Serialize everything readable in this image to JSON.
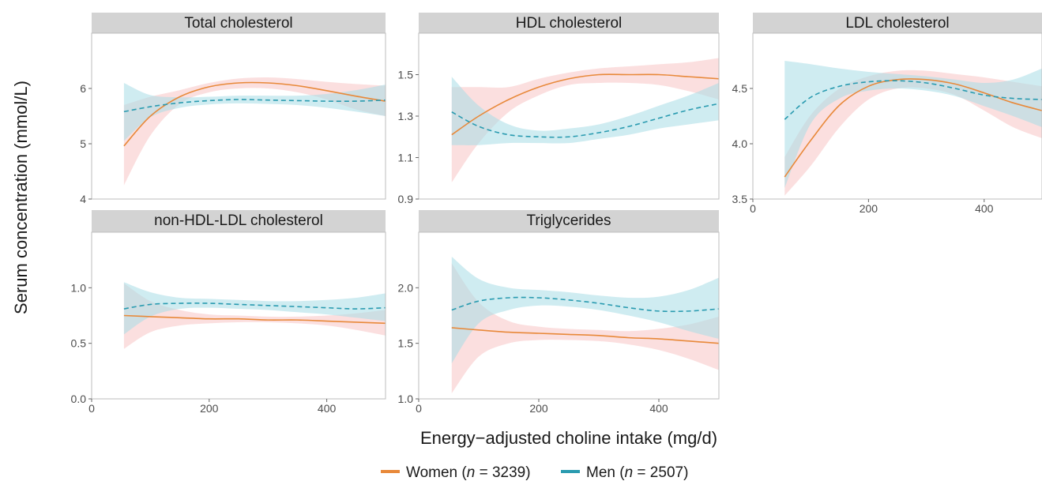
{
  "figure": {
    "ylabel": "Serum concentration (mmol/L)",
    "xlabel": "Energy−adjusted choline intake (mg/d)",
    "legend": [
      {
        "key": "women",
        "label": "Women (",
        "n_symbol": "n",
        "n_text": " = 3239)"
      },
      {
        "key": "men",
        "label": "Men (",
        "n_symbol": "n",
        "n_text": " = 2507)"
      }
    ],
    "colors": {
      "women_line": "#E8893A",
      "women_band": "#F8C5C5",
      "men_line": "#2A9BB0",
      "men_band": "#A8DCE6",
      "strip": "#D3D3D3"
    }
  },
  "chart_data": [
    {
      "type": "line",
      "title": "Total cholesterol",
      "xlim": [
        0,
        500
      ],
      "ylim": [
        4,
        7
      ],
      "y_ticks": [
        4,
        5,
        6
      ],
      "x_ticks": [],
      "series": [
        {
          "name": "Women (n = 3239)",
          "key": "women",
          "style": "solid",
          "x": [
            55,
            100,
            150,
            200,
            250,
            300,
            350,
            400,
            450,
            500
          ],
          "y": [
            4.96,
            5.5,
            5.85,
            6.03,
            6.1,
            6.1,
            6.05,
            5.96,
            5.86,
            5.77
          ],
          "lower": [
            4.25,
            5.15,
            5.72,
            5.93,
            6.0,
            6.0,
            5.93,
            5.8,
            5.62,
            5.5
          ],
          "upper": [
            5.7,
            5.85,
            5.97,
            6.1,
            6.18,
            6.2,
            6.17,
            6.12,
            6.08,
            6.05
          ]
        },
        {
          "name": "Men (n = 2507)",
          "key": "men",
          "style": "dashed",
          "x": [
            55,
            100,
            150,
            200,
            250,
            300,
            350,
            400,
            450,
            500
          ],
          "y": [
            5.58,
            5.67,
            5.74,
            5.78,
            5.8,
            5.79,
            5.78,
            5.77,
            5.77,
            5.79
          ],
          "lower": [
            5.05,
            5.48,
            5.65,
            5.71,
            5.73,
            5.72,
            5.7,
            5.65,
            5.58,
            5.5
          ],
          "upper": [
            6.1,
            5.88,
            5.84,
            5.85,
            5.87,
            5.87,
            5.87,
            5.9,
            5.97,
            6.07
          ]
        }
      ]
    },
    {
      "type": "line",
      "title": "HDL cholesterol",
      "xlim": [
        0,
        500
      ],
      "ylim": [
        0.9,
        1.7
      ],
      "y_ticks": [
        0.9,
        1.1,
        1.3,
        1.5
      ],
      "x_ticks": [],
      "series": [
        {
          "name": "Women (n = 3239)",
          "key": "women",
          "style": "solid",
          "x": [
            55,
            100,
            150,
            200,
            250,
            300,
            350,
            400,
            450,
            500
          ],
          "y": [
            1.21,
            1.3,
            1.38,
            1.44,
            1.48,
            1.5,
            1.5,
            1.5,
            1.49,
            1.48
          ],
          "lower": [
            0.98,
            1.17,
            1.32,
            1.4,
            1.45,
            1.46,
            1.46,
            1.45,
            1.42,
            1.38
          ],
          "upper": [
            1.44,
            1.44,
            1.44,
            1.48,
            1.51,
            1.53,
            1.54,
            1.55,
            1.56,
            1.58
          ]
        },
        {
          "name": "Men (n = 2507)",
          "key": "men",
          "style": "dashed",
          "x": [
            55,
            100,
            150,
            200,
            250,
            300,
            350,
            400,
            450,
            500
          ],
          "y": [
            1.32,
            1.25,
            1.21,
            1.2,
            1.2,
            1.22,
            1.25,
            1.29,
            1.33,
            1.36
          ],
          "lower": [
            1.16,
            1.16,
            1.17,
            1.17,
            1.17,
            1.19,
            1.21,
            1.24,
            1.26,
            1.28
          ],
          "upper": [
            1.49,
            1.35,
            1.26,
            1.23,
            1.24,
            1.26,
            1.3,
            1.35,
            1.4,
            1.46
          ]
        }
      ]
    },
    {
      "type": "line",
      "title": "LDL cholesterol",
      "xlim": [
        0,
        500
      ],
      "ylim": [
        3.5,
        5.0
      ],
      "y_ticks": [
        3.5,
        4.0,
        4.5
      ],
      "x_ticks": [
        0,
        200,
        400
      ],
      "series": [
        {
          "name": "Women (n = 3239)",
          "key": "women",
          "style": "solid",
          "x": [
            55,
            100,
            150,
            200,
            250,
            300,
            350,
            400,
            450,
            500
          ],
          "y": [
            3.7,
            4.03,
            4.35,
            4.52,
            4.58,
            4.58,
            4.54,
            4.46,
            4.37,
            4.3
          ],
          "lower": [
            3.53,
            3.8,
            4.15,
            4.4,
            4.5,
            4.5,
            4.44,
            4.3,
            4.15,
            4.05
          ],
          "upper": [
            3.88,
            4.26,
            4.5,
            4.61,
            4.66,
            4.66,
            4.63,
            4.6,
            4.56,
            4.52
          ]
        },
        {
          "name": "Men (n = 2507)",
          "key": "men",
          "style": "dashed",
          "x": [
            55,
            100,
            150,
            200,
            250,
            300,
            350,
            400,
            450,
            500
          ],
          "y": [
            4.22,
            4.42,
            4.52,
            4.56,
            4.57,
            4.55,
            4.5,
            4.44,
            4.41,
            4.4
          ],
          "lower": [
            3.6,
            4.18,
            4.41,
            4.48,
            4.5,
            4.48,
            4.43,
            4.34,
            4.25,
            4.15
          ],
          "upper": [
            4.75,
            4.72,
            4.68,
            4.65,
            4.63,
            4.61,
            4.58,
            4.55,
            4.58,
            4.68
          ]
        }
      ]
    },
    {
      "type": "line",
      "title": "non-HDL-LDL cholesterol",
      "xlim": [
        0,
        500
      ],
      "ylim": [
        0.0,
        1.5
      ],
      "y_ticks": [
        0.0,
        0.5,
        1.0
      ],
      "x_ticks": [
        0,
        200,
        400
      ],
      "series": [
        {
          "name": "Women (n = 3239)",
          "key": "women",
          "style": "solid",
          "x": [
            55,
            100,
            150,
            200,
            250,
            300,
            350,
            400,
            450,
            500
          ],
          "y": [
            0.75,
            0.74,
            0.73,
            0.72,
            0.72,
            0.71,
            0.71,
            0.7,
            0.69,
            0.68
          ],
          "lower": [
            0.45,
            0.6,
            0.66,
            0.68,
            0.69,
            0.69,
            0.68,
            0.66,
            0.62,
            0.57
          ],
          "upper": [
            1.04,
            0.88,
            0.8,
            0.76,
            0.75,
            0.74,
            0.74,
            0.75,
            0.77,
            0.8
          ]
        },
        {
          "name": "Men (n = 2507)",
          "key": "men",
          "style": "dashed",
          "x": [
            55,
            100,
            150,
            200,
            250,
            300,
            350,
            400,
            450,
            500
          ],
          "y": [
            0.81,
            0.85,
            0.86,
            0.86,
            0.85,
            0.84,
            0.83,
            0.82,
            0.81,
            0.82
          ],
          "lower": [
            0.58,
            0.74,
            0.81,
            0.82,
            0.81,
            0.8,
            0.78,
            0.76,
            0.73,
            0.7
          ],
          "upper": [
            1.05,
            0.96,
            0.91,
            0.9,
            0.89,
            0.88,
            0.88,
            0.89,
            0.91,
            0.95
          ]
        }
      ]
    },
    {
      "type": "line",
      "title": "Triglycerides",
      "xlim": [
        0,
        500
      ],
      "ylim": [
        1.0,
        2.5
      ],
      "y_ticks": [
        1.0,
        1.5,
        2.0
      ],
      "x_ticks": [
        0,
        200,
        400
      ],
      "series": [
        {
          "name": "Women (n = 3239)",
          "key": "women",
          "style": "solid",
          "x": [
            55,
            100,
            150,
            200,
            250,
            300,
            350,
            400,
            450,
            500
          ],
          "y": [
            1.64,
            1.62,
            1.6,
            1.59,
            1.58,
            1.57,
            1.55,
            1.54,
            1.52,
            1.5
          ],
          "lower": [
            1.05,
            1.38,
            1.5,
            1.53,
            1.53,
            1.52,
            1.49,
            1.44,
            1.36,
            1.26
          ],
          "upper": [
            2.22,
            1.87,
            1.7,
            1.65,
            1.63,
            1.62,
            1.61,
            1.63,
            1.67,
            1.74
          ]
        },
        {
          "name": "Men (n = 2507)",
          "key": "men",
          "style": "dashed",
          "x": [
            55,
            100,
            150,
            200,
            250,
            300,
            350,
            400,
            450,
            500
          ],
          "y": [
            1.8,
            1.88,
            1.91,
            1.91,
            1.89,
            1.86,
            1.82,
            1.79,
            1.79,
            1.81
          ],
          "lower": [
            1.32,
            1.68,
            1.8,
            1.84,
            1.83,
            1.8,
            1.75,
            1.69,
            1.61,
            1.54
          ],
          "upper": [
            2.28,
            2.08,
            2.0,
            1.98,
            1.96,
            1.93,
            1.91,
            1.92,
            1.98,
            2.09
          ]
        }
      ]
    }
  ]
}
